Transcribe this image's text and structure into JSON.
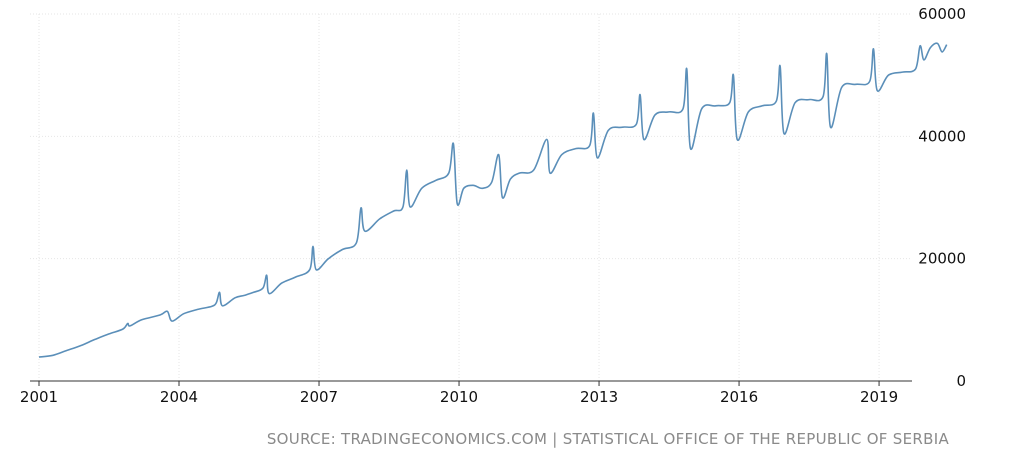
{
  "chart_data": {
    "type": "line",
    "title": "",
    "xlabel": "",
    "ylabel": "",
    "x_ticks": [
      "2001",
      "2004",
      "2007",
      "2010",
      "2013",
      "2016",
      "2019"
    ],
    "y_ticks": [
      "0",
      "20000",
      "40000",
      "60000"
    ],
    "xlim": [
      2001,
      2019.8
    ],
    "ylim": [
      0,
      60000
    ],
    "grid": true,
    "legend": "none",
    "series": [
      {
        "points": [
          [
            2001.0,
            3900
          ],
          [
            2001.3,
            4200
          ],
          [
            2001.6,
            5000
          ],
          [
            2001.9,
            5800
          ],
          [
            2002.2,
            6800
          ],
          [
            2002.5,
            7700
          ],
          [
            2002.8,
            8500
          ],
          [
            2002.9,
            9400
          ],
          [
            2002.95,
            9000
          ],
          [
            2003.2,
            10000
          ],
          [
            2003.6,
            10800
          ],
          [
            2003.75,
            11400
          ],
          [
            2003.85,
            9800
          ],
          [
            2004.1,
            11000
          ],
          [
            2004.4,
            11700
          ],
          [
            2004.7,
            12200
          ],
          [
            2004.8,
            12800
          ],
          [
            2004.87,
            14500
          ],
          [
            2004.93,
            12300
          ],
          [
            2005.2,
            13600
          ],
          [
            2005.4,
            14000
          ],
          [
            2005.6,
            14500
          ],
          [
            2005.8,
            15200
          ],
          [
            2005.88,
            17300
          ],
          [
            2005.93,
            14300
          ],
          [
            2006.2,
            16000
          ],
          [
            2006.5,
            17000
          ],
          [
            2006.8,
            18200
          ],
          [
            2006.87,
            22000
          ],
          [
            2006.94,
            18200
          ],
          [
            2007.2,
            20000
          ],
          [
            2007.5,
            21500
          ],
          [
            2007.8,
            22600
          ],
          [
            2007.9,
            28300
          ],
          [
            2007.98,
            24500
          ],
          [
            2008.3,
            26500
          ],
          [
            2008.6,
            27800
          ],
          [
            2008.8,
            28500
          ],
          [
            2008.88,
            34500
          ],
          [
            2008.95,
            28500
          ],
          [
            2009.2,
            31500
          ],
          [
            2009.5,
            32800
          ],
          [
            2009.78,
            34000
          ],
          [
            2009.88,
            38800
          ],
          [
            2009.96,
            29000
          ],
          [
            2010.1,
            31500
          ],
          [
            2010.3,
            32000
          ],
          [
            2010.5,
            31500
          ],
          [
            2010.7,
            32500
          ],
          [
            2010.85,
            37000
          ],
          [
            2010.93,
            30000
          ],
          [
            2011.1,
            33000
          ],
          [
            2011.3,
            34000
          ],
          [
            2011.6,
            34500
          ],
          [
            2011.88,
            39500
          ],
          [
            2011.95,
            34000
          ],
          [
            2012.2,
            37000
          ],
          [
            2012.5,
            38000
          ],
          [
            2012.8,
            38500
          ],
          [
            2012.88,
            43800
          ],
          [
            2012.96,
            36500
          ],
          [
            2013.2,
            41000
          ],
          [
            2013.5,
            41500
          ],
          [
            2013.8,
            42000
          ],
          [
            2013.88,
            46800
          ],
          [
            2013.96,
            39500
          ],
          [
            2014.2,
            43500
          ],
          [
            2014.5,
            44000
          ],
          [
            2014.8,
            44500
          ],
          [
            2014.88,
            51000
          ],
          [
            2014.96,
            38000
          ],
          [
            2015.2,
            44500
          ],
          [
            2015.5,
            45000
          ],
          [
            2015.8,
            45500
          ],
          [
            2015.88,
            50000
          ],
          [
            2015.96,
            39500
          ],
          [
            2016.2,
            44000
          ],
          [
            2016.5,
            45000
          ],
          [
            2016.8,
            45800
          ],
          [
            2016.88,
            51500
          ],
          [
            2016.96,
            40500
          ],
          [
            2017.2,
            45500
          ],
          [
            2017.5,
            46000
          ],
          [
            2017.8,
            46500
          ],
          [
            2017.88,
            53500
          ],
          [
            2017.96,
            41500
          ],
          [
            2018.2,
            48000
          ],
          [
            2018.5,
            48500
          ],
          [
            2018.8,
            49000
          ],
          [
            2018.88,
            54300
          ],
          [
            2018.96,
            47500
          ],
          [
            2019.2,
            50000
          ],
          [
            2019.5,
            50500
          ],
          [
            2019.78,
            51000
          ],
          [
            2019.88,
            54800
          ],
          [
            2019.96,
            52500
          ],
          [
            2020.1,
            54500
          ],
          [
            2020.25,
            55200
          ],
          [
            2020.35,
            53800
          ],
          [
            2020.45,
            55000
          ]
        ]
      }
    ]
  },
  "source": "SOURCE: TRADINGECONOMICS.COM | STATISTICAL OFFICE OF THE REPUBLIC OF SERBIA",
  "colors": {
    "line": "#5b8fb9",
    "grid": "#e6e6e6",
    "axis": "#333333"
  }
}
